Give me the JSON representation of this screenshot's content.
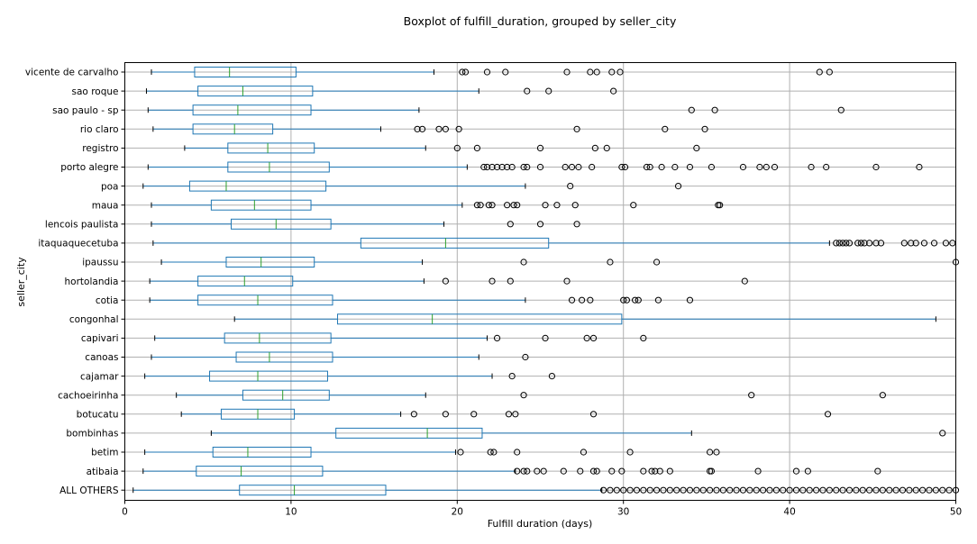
{
  "chart_data": {
    "type": "boxplot",
    "orientation": "horizontal",
    "title": "Boxplot of fulfill_duration, grouped by seller_city",
    "xlabel": "Fulfill duration (days)",
    "ylabel": "seller_city",
    "xlim": [
      0,
      50
    ],
    "xticks": [
      0,
      10,
      20,
      30,
      40,
      50
    ],
    "grid": true,
    "colors": {
      "box": "#1f77b4",
      "median": "#2ca02c",
      "grid": "#b0b0b0",
      "outlier": "#000000"
    },
    "categories": [
      {
        "name": "vicente de carvalho",
        "whislo": 1.6,
        "q1": 4.2,
        "median": 6.3,
        "q3": 10.3,
        "whishi": 18.6,
        "fliers": [
          20.3,
          20.5,
          21.8,
          22.9,
          26.6,
          28.0,
          28.4,
          29.3,
          29.8,
          41.8,
          42.4
        ]
      },
      {
        "name": "sao roque",
        "whislo": 1.3,
        "q1": 4.4,
        "median": 7.1,
        "q3": 11.3,
        "whishi": 21.3,
        "fliers": [
          24.2,
          25.5,
          29.4
        ]
      },
      {
        "name": "sao paulo - sp",
        "whislo": 1.4,
        "q1": 4.1,
        "median": 6.8,
        "q3": 11.2,
        "whishi": 17.7,
        "fliers": [
          34.1,
          35.5,
          43.1
        ]
      },
      {
        "name": "rio claro",
        "whislo": 1.7,
        "q1": 4.1,
        "median": 6.6,
        "q3": 8.9,
        "whishi": 15.4,
        "fliers": [
          17.6,
          17.9,
          18.9,
          19.3,
          20.1,
          27.2,
          32.5,
          34.9
        ]
      },
      {
        "name": "registro",
        "whislo": 3.6,
        "q1": 6.2,
        "median": 8.6,
        "q3": 11.4,
        "whishi": 18.1,
        "fliers": [
          20.0,
          21.2,
          25.0,
          28.3,
          29.0,
          34.4
        ]
      },
      {
        "name": "porto alegre",
        "whislo": 1.4,
        "q1": 6.2,
        "median": 8.7,
        "q3": 12.3,
        "whishi": 20.6,
        "fliers": [
          21.6,
          21.8,
          22.1,
          22.4,
          22.7,
          23.0,
          23.3,
          24.0,
          24.2,
          25.0,
          26.5,
          26.9,
          27.3,
          28.1,
          29.9,
          30.1,
          31.4,
          31.6,
          32.3,
          33.1,
          34.0,
          35.3,
          37.2,
          38.2,
          38.6,
          39.1,
          41.3,
          42.2,
          45.2,
          47.8
        ]
      },
      {
        "name": "poa",
        "whislo": 1.1,
        "q1": 3.9,
        "median": 6.1,
        "q3": 12.1,
        "whishi": 24.1,
        "fliers": [
          26.8,
          33.3
        ]
      },
      {
        "name": "maua",
        "whislo": 1.6,
        "q1": 5.2,
        "median": 7.8,
        "q3": 11.2,
        "whishi": 20.3,
        "fliers": [
          21.2,
          21.4,
          21.9,
          22.1,
          23.0,
          23.4,
          23.6,
          25.3,
          26.0,
          27.1,
          30.6,
          35.7,
          35.8
        ]
      },
      {
        "name": "lencois paulista",
        "whislo": 1.6,
        "q1": 6.4,
        "median": 9.1,
        "q3": 12.4,
        "whishi": 19.2,
        "fliers": [
          23.2,
          25.0,
          27.2
        ]
      },
      {
        "name": "itaquaquecetuba",
        "whislo": 1.7,
        "q1": 14.2,
        "median": 19.3,
        "q3": 25.5,
        "whishi": 42.4,
        "fliers": [
          42.8,
          43.0,
          43.2,
          43.4,
          43.6,
          44.1,
          44.3,
          44.5,
          44.8,
          45.2,
          45.5,
          46.9,
          47.3,
          47.6,
          48.1,
          48.7,
          49.4,
          49.8
        ]
      },
      {
        "name": "ipaussu",
        "whislo": 2.2,
        "q1": 6.1,
        "median": 8.2,
        "q3": 11.4,
        "whishi": 17.9,
        "fliers": [
          24.0,
          29.2,
          32.0,
          50.0
        ]
      },
      {
        "name": "hortolandia",
        "whislo": 1.5,
        "q1": 4.4,
        "median": 7.2,
        "q3": 10.1,
        "whishi": 18.0,
        "fliers": [
          19.3,
          22.1,
          23.2,
          26.6,
          37.3
        ]
      },
      {
        "name": "cotia",
        "whislo": 1.5,
        "q1": 4.4,
        "median": 8.0,
        "q3": 12.5,
        "whishi": 24.1,
        "fliers": [
          26.9,
          27.5,
          28.0,
          30.0,
          30.2,
          30.7,
          30.9,
          32.1,
          34.0
        ]
      },
      {
        "name": "congonhal",
        "whislo": 6.6,
        "q1": 12.8,
        "median": 18.5,
        "q3": 29.9,
        "whishi": 48.8,
        "fliers": []
      },
      {
        "name": "capivari",
        "whislo": 1.8,
        "q1": 6.0,
        "median": 8.1,
        "q3": 12.4,
        "whishi": 21.8,
        "fliers": [
          22.4,
          25.3,
          27.8,
          28.2,
          31.2
        ]
      },
      {
        "name": "canoas",
        "whislo": 1.6,
        "q1": 6.7,
        "median": 8.7,
        "q3": 12.5,
        "whishi": 21.3,
        "fliers": [
          24.1
        ]
      },
      {
        "name": "cajamar",
        "whislo": 1.2,
        "q1": 5.1,
        "median": 8.0,
        "q3": 12.2,
        "whishi": 22.1,
        "fliers": [
          23.3,
          25.7
        ]
      },
      {
        "name": "cachoeirinha",
        "whislo": 3.1,
        "q1": 7.1,
        "median": 9.5,
        "q3": 12.3,
        "whishi": 18.1,
        "fliers": [
          24.0,
          37.7,
          45.6
        ]
      },
      {
        "name": "botucatu",
        "whislo": 3.4,
        "q1": 5.8,
        "median": 8.0,
        "q3": 10.2,
        "whishi": 16.6,
        "fliers": [
          17.4,
          19.3,
          21.0,
          23.1,
          23.5,
          28.2,
          42.3
        ]
      },
      {
        "name": "bombinhas",
        "whislo": 5.2,
        "q1": 12.7,
        "median": 18.2,
        "q3": 21.5,
        "whishi": 34.1,
        "fliers": [
          49.2
        ]
      },
      {
        "name": "betim",
        "whislo": 1.2,
        "q1": 5.3,
        "median": 7.4,
        "q3": 11.2,
        "whishi": 19.9,
        "fliers": [
          20.2,
          22.0,
          22.2,
          23.6,
          27.6,
          30.4,
          35.2,
          35.6
        ]
      },
      {
        "name": "atibaia",
        "whislo": 1.1,
        "q1": 4.3,
        "median": 7.0,
        "q3": 11.9,
        "whishi": 23.5,
        "fliers": [
          23.6,
          24.0,
          24.2,
          24.8,
          25.2,
          26.4,
          27.4,
          28.2,
          28.4,
          29.3,
          29.9,
          31.2,
          31.7,
          31.9,
          32.2,
          32.8,
          35.2,
          35.3,
          38.1,
          40.4,
          41.1,
          45.3
        ]
      },
      {
        "name": "ALL OTHERS",
        "whislo": 0.5,
        "q1": 6.9,
        "median": 10.2,
        "q3": 15.7,
        "whishi": 28.7,
        "fliers": [
          28.8,
          29.2,
          29.6,
          30.0,
          30.4,
          30.8,
          31.2,
          31.6,
          32.0,
          32.4,
          32.8,
          33.2,
          33.6,
          34.0,
          34.4,
          34.8,
          35.2,
          35.6,
          36.0,
          36.4,
          36.8,
          37.2,
          37.6,
          38.0,
          38.4,
          38.8,
          39.2,
          39.6,
          40.0,
          40.4,
          40.8,
          41.2,
          41.6,
          42.0,
          42.4,
          42.8,
          43.2,
          43.6,
          44.0,
          44.4,
          44.8,
          45.2,
          45.6,
          46.0,
          46.4,
          46.8,
          47.2,
          47.6,
          48.0,
          48.4,
          48.8,
          49.2,
          49.6,
          50.0
        ]
      }
    ]
  }
}
